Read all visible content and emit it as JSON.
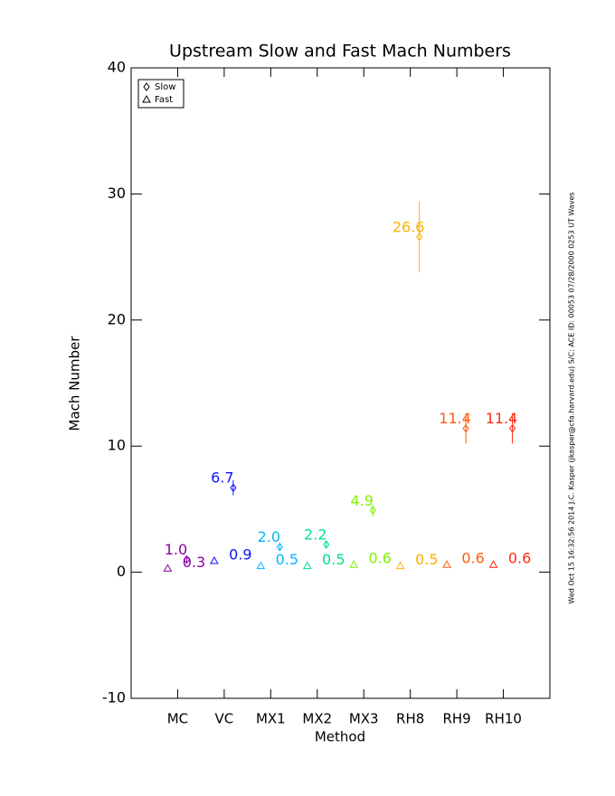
{
  "chart_data": {
    "type": "errorbar",
    "title": "Upstream Slow and Fast Mach Numbers",
    "x_label": "Method",
    "y_label": "Mach Number",
    "annotation": "Wed Oct 15 16:32:56 2014   J.C. Kasper (jkasper@cfa.harvard.edu)   S/C: ACE ID: 00053 07/28/2000   0253 UT Waves",
    "categories": [
      "MC",
      "VC",
      "MX1",
      "MX2",
      "MX3",
      "RH8",
      "RH9",
      "RH10"
    ],
    "colors": [
      "#8a00a0",
      "#1010ff",
      "#00b8ff",
      "#00e090",
      "#80f000",
      "#ffb000",
      "#ff5a10",
      "#ff2a10"
    ],
    "series": [
      {
        "name": "Slow",
        "marker": "diamond",
        "values": [
          1.0,
          6.7,
          2.0,
          2.2,
          4.9,
          26.6,
          11.4,
          11.4
        ],
        "value_labels": [
          "1.0",
          "6.7",
          "2.0",
          "2.2",
          "4.9",
          "26.6",
          "11.4",
          "11.4"
        ],
        "errors": [
          0.3,
          0.6,
          0.2,
          0.3,
          0.5,
          2.8,
          1.2,
          1.2
        ]
      },
      {
        "name": "Fast",
        "marker": "triangle",
        "values": [
          0.3,
          0.9,
          0.5,
          0.5,
          0.6,
          0.5,
          0.6,
          0.6
        ],
        "value_labels": [
          "0.3",
          "0.9",
          "0.5",
          "0.5",
          "0.6",
          "0.5",
          "0.6",
          "0.6"
        ]
      }
    ],
    "ylim": [
      -10,
      40
    ],
    "yticks": [
      -10,
      0,
      10,
      20,
      30,
      40
    ],
    "legend": "top-left"
  }
}
